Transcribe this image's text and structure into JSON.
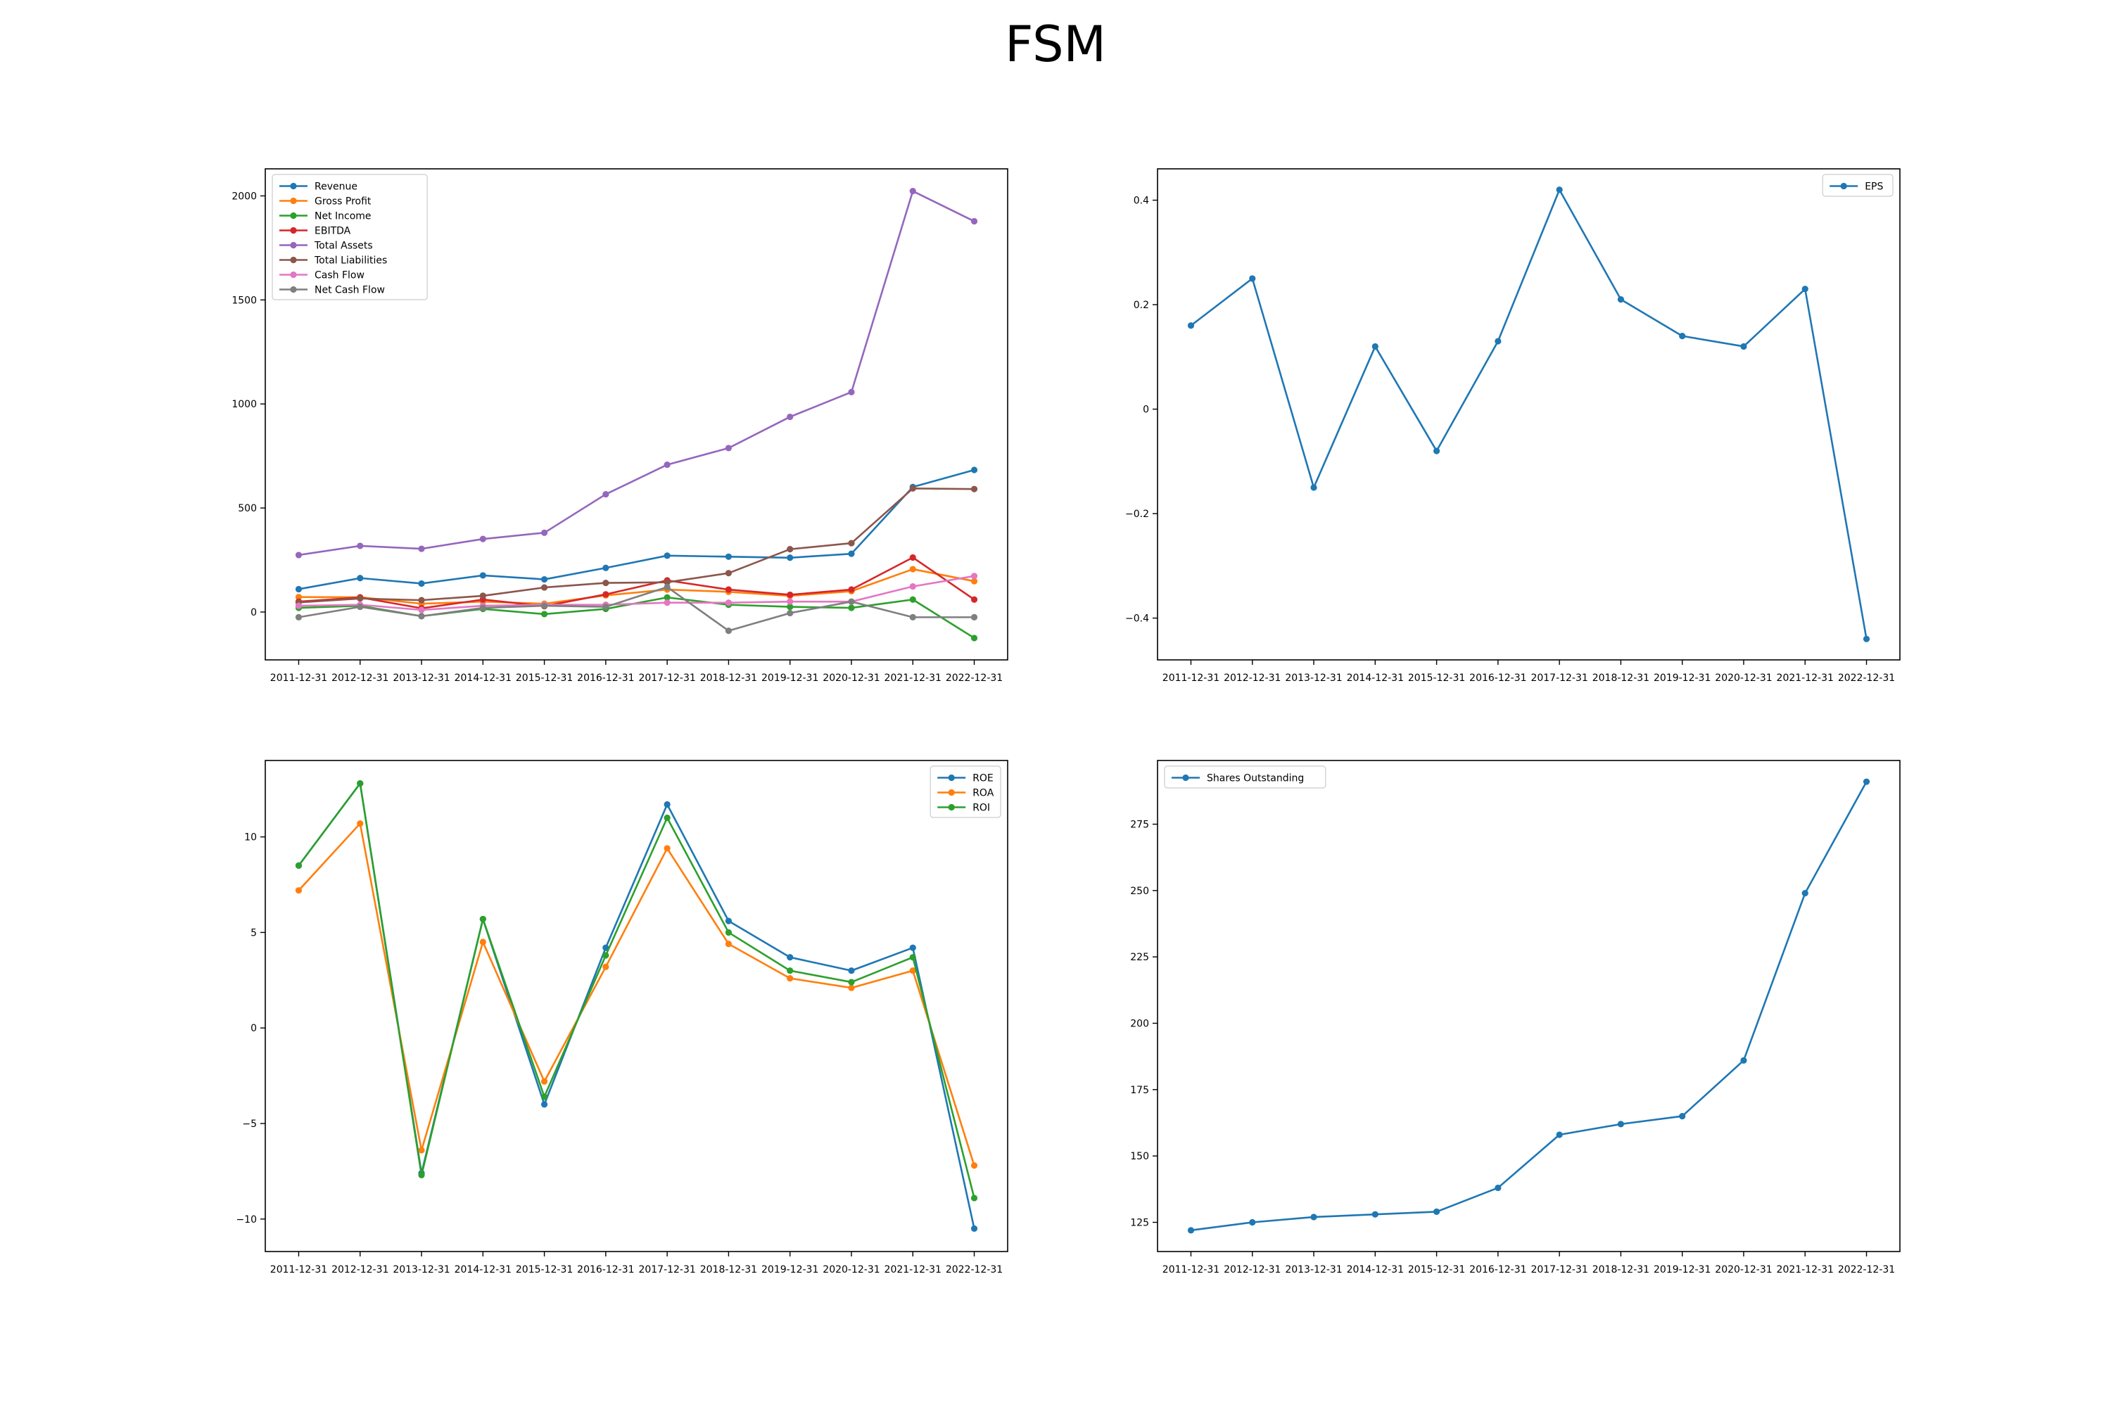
{
  "title": "FSM",
  "colors": {
    "c0": "#1f77b4",
    "c1": "#ff7f0e",
    "c2": "#2ca02c",
    "c3": "#d62728",
    "c4": "#9467bd",
    "c5": "#8c564b",
    "c6": "#e377c2",
    "c7": "#7f7f7f"
  },
  "chart_data": [
    {
      "type": "line",
      "x": [
        "2011-12-31",
        "2012-12-31",
        "2013-12-31",
        "2014-12-31",
        "2015-12-31",
        "2016-12-31",
        "2017-12-31",
        "2018-12-31",
        "2019-12-31",
        "2020-12-31",
        "2021-12-31",
        "2022-12-31"
      ],
      "ylim": [
        -230,
        2130
      ],
      "yticks": [
        0,
        500,
        1000,
        1500,
        2000
      ],
      "legend": "upper left",
      "series": [
        {
          "name": "Revenue",
          "values": [
            110,
            163,
            137,
            176,
            157,
            212,
            271,
            266,
            261,
            280,
            601,
            683
          ]
        },
        {
          "name": "Gross Profit",
          "values": [
            72,
            71,
            40,
            50,
            40,
            80,
            108,
            97,
            78,
            100,
            206,
            148
          ]
        },
        {
          "name": "Net Income",
          "values": [
            20,
            30,
            -20,
            15,
            -10,
            15,
            70,
            35,
            25,
            20,
            60,
            -125
          ]
        },
        {
          "name": "EBITDA",
          "values": [
            50,
            70,
            18,
            60,
            28,
            85,
            152,
            108,
            83,
            108,
            262,
            60
          ]
        },
        {
          "name": "Total Assets",
          "values": [
            274,
            318,
            304,
            351,
            381,
            566,
            708,
            788,
            938,
            1057,
            2023,
            1878
          ]
        },
        {
          "name": "Total Liabilities",
          "values": [
            46,
            65,
            57,
            78,
            118,
            140,
            143,
            187,
            302,
            331,
            594,
            591
          ]
        },
        {
          "name": "Cash Flow",
          "values": [
            30,
            35,
            10,
            30,
            35,
            35,
            45,
            45,
            50,
            50,
            123,
            173
          ]
        },
        {
          "name": "Net Cash Flow",
          "values": [
            -25,
            25,
            -20,
            20,
            30,
            25,
            120,
            -90,
            -5,
            50,
            -25,
            -25
          ]
        }
      ]
    },
    {
      "type": "line",
      "x": [
        "2011-12-31",
        "2012-12-31",
        "2013-12-31",
        "2014-12-31",
        "2015-12-31",
        "2016-12-31",
        "2017-12-31",
        "2018-12-31",
        "2019-12-31",
        "2020-12-31",
        "2021-12-31",
        "2022-12-31"
      ],
      "ylim": [
        -0.48,
        0.46
      ],
      "yticks": [
        -0.4,
        -0.2,
        0.0,
        0.2,
        0.4
      ],
      "legend": "upper right",
      "series": [
        {
          "name": "EPS",
          "values": [
            0.16,
            0.25,
            -0.15,
            0.12,
            -0.08,
            0.13,
            0.42,
            0.21,
            0.14,
            0.12,
            0.23,
            -0.44
          ]
        }
      ]
    },
    {
      "type": "line",
      "x": [
        "2011-12-31",
        "2012-12-31",
        "2013-12-31",
        "2014-12-31",
        "2015-12-31",
        "2016-12-31",
        "2017-12-31",
        "2018-12-31",
        "2019-12-31",
        "2020-12-31",
        "2021-12-31",
        "2022-12-31"
      ],
      "ylim": [
        -11.7,
        14.0
      ],
      "yticks": [
        -10,
        -5,
        0,
        5,
        10
      ],
      "legend": "upper right",
      "series": [
        {
          "name": "ROE",
          "values": [
            8.5,
            12.8,
            -7.6,
            5.7,
            -4.0,
            4.2,
            11.7,
            5.6,
            3.7,
            3.0,
            4.2,
            -10.5
          ]
        },
        {
          "name": "ROA",
          "values": [
            7.2,
            10.7,
            -6.4,
            4.5,
            -2.8,
            3.2,
            9.4,
            4.4,
            2.6,
            2.1,
            3.0,
            -7.2
          ]
        },
        {
          "name": "ROI",
          "values": [
            8.5,
            12.8,
            -7.7,
            5.7,
            -3.6,
            3.8,
            11.0,
            5.0,
            3.0,
            2.4,
            3.7,
            -8.9
          ]
        }
      ]
    },
    {
      "type": "line",
      "x": [
        "2011-12-31",
        "2012-12-31",
        "2013-12-31",
        "2014-12-31",
        "2015-12-31",
        "2016-12-31",
        "2017-12-31",
        "2018-12-31",
        "2019-12-31",
        "2020-12-31",
        "2021-12-31",
        "2022-12-31"
      ],
      "ylim": [
        114,
        299
      ],
      "yticks": [
        125,
        150,
        175,
        200,
        225,
        250,
        275
      ],
      "legend": "upper left",
      "series": [
        {
          "name": "Shares Outstanding",
          "values": [
            122,
            125,
            127,
            128,
            129,
            138,
            158,
            162,
            165,
            186,
            249,
            291
          ]
        }
      ]
    }
  ]
}
